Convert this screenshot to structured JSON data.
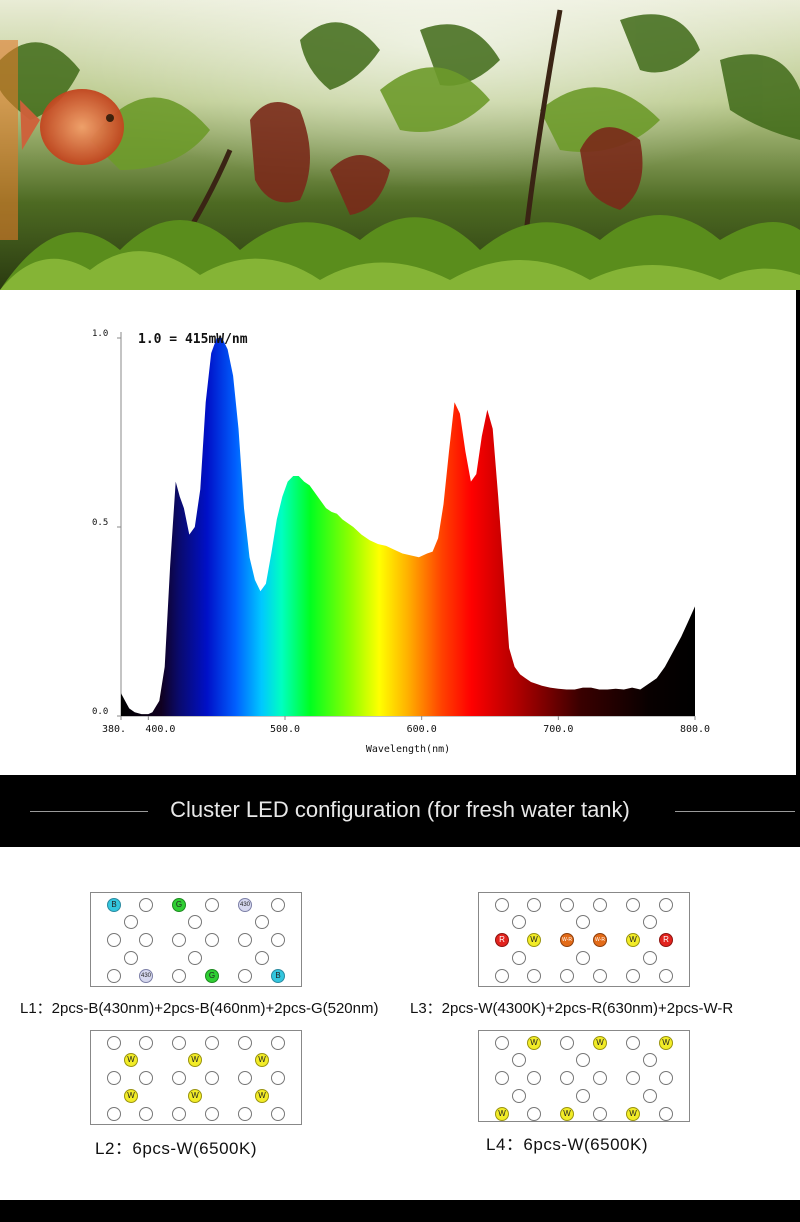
{
  "chart_data": {
    "type": "area",
    "annotation": "1.0 = 415mW/nm",
    "xlabel": "Wavelength(nm)",
    "ylabel": "",
    "x_ticks": [
      "380.",
      "400.0",
      "500.0",
      "600.0",
      "700.0",
      "800.0"
    ],
    "y_ticks": [
      "1.0",
      "0.5",
      "0.0"
    ],
    "xlim": [
      380,
      800
    ],
    "ylim": [
      0,
      1.0
    ],
    "x": [
      380,
      383,
      386,
      390,
      395,
      400,
      403,
      408,
      412,
      416,
      420,
      423,
      426,
      430,
      434,
      438,
      442,
      446,
      450,
      454,
      458,
      462,
      466,
      470,
      474,
      478,
      482,
      486,
      490,
      494,
      498,
      502,
      506,
      510,
      514,
      518,
      522,
      526,
      530,
      534,
      538,
      542,
      546,
      550,
      556,
      562,
      568,
      574,
      580,
      586,
      592,
      598,
      604,
      608,
      612,
      616,
      620,
      624,
      628,
      632,
      636,
      640,
      644,
      648,
      652,
      656,
      660,
      664,
      668,
      672,
      676,
      680,
      684,
      688,
      694,
      700,
      706,
      712,
      718,
      724,
      730,
      736,
      742,
      748,
      754,
      760,
      766,
      772,
      778,
      784,
      790,
      795,
      800
    ],
    "values": [
      0.06,
      0.04,
      0.02,
      0.01,
      0.005,
      0.005,
      0.01,
      0.04,
      0.13,
      0.4,
      0.62,
      0.58,
      0.55,
      0.48,
      0.5,
      0.6,
      0.83,
      0.96,
      1.0,
      1.0,
      0.97,
      0.9,
      0.76,
      0.55,
      0.42,
      0.36,
      0.33,
      0.35,
      0.43,
      0.52,
      0.58,
      0.62,
      0.635,
      0.635,
      0.62,
      0.61,
      0.59,
      0.57,
      0.55,
      0.54,
      0.535,
      0.52,
      0.51,
      0.5,
      0.48,
      0.465,
      0.455,
      0.45,
      0.44,
      0.43,
      0.425,
      0.42,
      0.43,
      0.435,
      0.47,
      0.56,
      0.7,
      0.83,
      0.8,
      0.7,
      0.62,
      0.64,
      0.74,
      0.81,
      0.76,
      0.58,
      0.38,
      0.18,
      0.13,
      0.11,
      0.1,
      0.09,
      0.085,
      0.08,
      0.075,
      0.072,
      0.07,
      0.07,
      0.075,
      0.075,
      0.07,
      0.07,
      0.072,
      0.07,
      0.075,
      0.07,
      0.085,
      0.1,
      0.13,
      0.17,
      0.21,
      0.25,
      0.29
    ]
  },
  "section_title": "Cluster LED configuration (for fresh water tank)",
  "boards": {
    "l1": {
      "caption": "L1：2pcs-B(430nm)+2pcs-B(460nm)+2pcs-G(520nm)",
      "leds": [
        {
          "label": "B",
          "color": "blue"
        },
        {
          "label": "G",
          "color": "green"
        },
        {
          "label": "430",
          "color": "lav"
        },
        {
          "label": "430",
          "color": "lav"
        },
        {
          "label": "G",
          "color": "green"
        },
        {
          "label": "B",
          "color": "blue"
        }
      ]
    },
    "l2": {
      "caption": "L2：6pcs-W(6500K)",
      "led_label": "W"
    },
    "l3": {
      "caption": "L3：2pcs-W(4300K)+2pcs-R(630nm)+2pcs-W-R",
      "leds": [
        {
          "label": "R",
          "color": "red"
        },
        {
          "label": "W",
          "color": "yellow"
        },
        {
          "label": "W-R",
          "color": "orange"
        },
        {
          "label": "W-R",
          "color": "orange"
        },
        {
          "label": "W",
          "color": "yellow"
        },
        {
          "label": "R",
          "color": "red"
        }
      ]
    },
    "l4": {
      "caption": "L4：6pcs-W(6500K)",
      "led_label": "W"
    }
  }
}
